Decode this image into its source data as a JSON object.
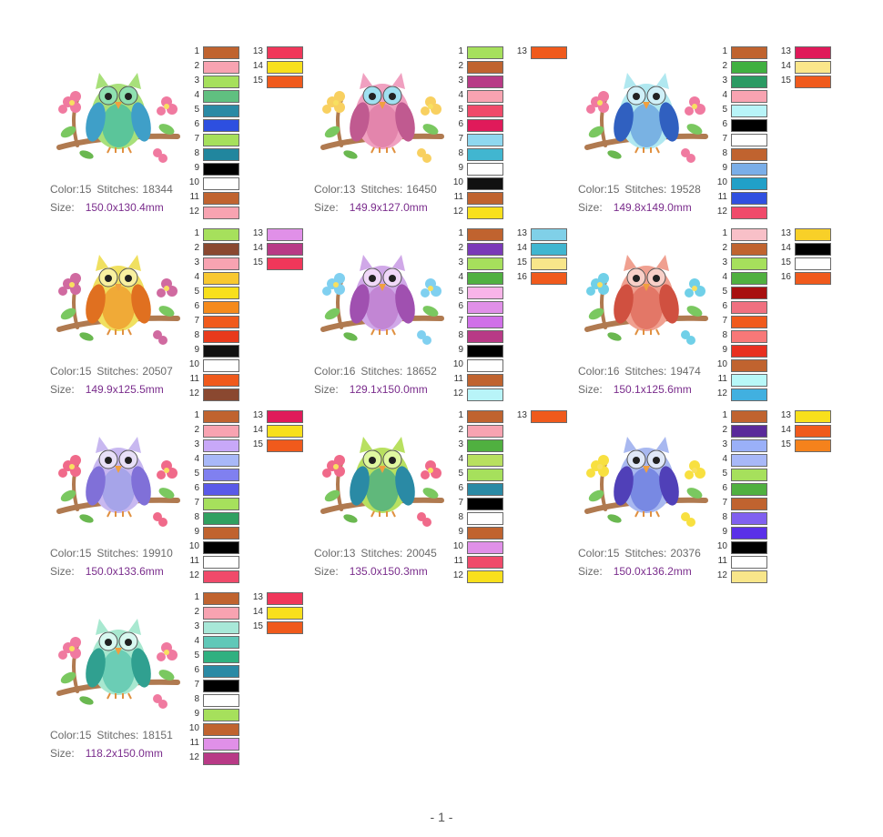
{
  "labels": {
    "color": "Color:",
    "stitches": "Stitches:",
    "size": "Size:"
  },
  "page_number": "- 1 -",
  "designs": [
    {
      "colors": "15",
      "stitches": "18344",
      "size": "150.0x130.4mm",
      "palette": [
        "#c0632f",
        "#f8a3b1",
        "#a6e05c",
        "#60c080",
        "#2a8aa5",
        "#2d4fe0",
        "#a6e05c",
        "#21869e",
        "#000000",
        "#ffffff",
        "#c0632f",
        "#f8a3b1",
        "#f0375a",
        "#f8e01c",
        "#f05a1c"
      ],
      "art": {
        "body": "#a8e07a",
        "belly": "#4ec0a0",
        "wing": "#3f9fc8",
        "flower": "#f07aa0",
        "eye": "#8fe0b0"
      }
    },
    {
      "colors": "13",
      "stitches": "16450",
      "size": "149.9x127.0mm",
      "palette": [
        "#a6e05c",
        "#c0632f",
        "#b83a86",
        "#f8a3b1",
        "#f04a6a",
        "#e01a5a",
        "#8fd8f0",
        "#41b6d0",
        "#ffffff",
        "#111111",
        "#c0632f",
        "#f8e01c",
        "#f05a1c"
      ],
      "art": {
        "body": "#f0a0c0",
        "belly": "#e080a8",
        "wing": "#c05a90",
        "flower": "#f8d060",
        "eye": "#a0e0f0"
      }
    },
    {
      "colors": "15",
      "stitches": "19528",
      "size": "149.8x149.0mm",
      "palette": [
        "#c0632f",
        "#40b040",
        "#2b9a63",
        "#f8a3b1",
        "#b8f4f8",
        "#000000",
        "#ffffff",
        "#c0632f",
        "#7aaee8",
        "#21a0c8",
        "#3050e0",
        "#f04a6a",
        "#e01a5a",
        "#fbe68a",
        "#f05a1c"
      ],
      "art": {
        "body": "#b0e8f0",
        "belly": "#70a8e0",
        "wing": "#3060c0",
        "flower": "#f07aa0",
        "eye": "#d0f0f8"
      }
    },
    {
      "colors": "15",
      "stitches": "20507",
      "size": "149.9x125.5mm",
      "palette": [
        "#a6e05c",
        "#8a4830",
        "#f8a3b1",
        "#f8c830",
        "#f8e01c",
        "#f58a1c",
        "#f05a1c",
        "#e83a1c",
        "#111111",
        "#ffffff",
        "#f05a1c",
        "#8a4830",
        "#e090e8",
        "#b83a86",
        "#f0375a"
      ],
      "art": {
        "body": "#f0e060",
        "belly": "#f0a030",
        "wing": "#e07020",
        "flower": "#d06aa0",
        "eye": "#f8f0a0"
      }
    },
    {
      "colors": "16",
      "stitches": "18652",
      "size": "129.1x150.0mm",
      "palette": [
        "#c0632f",
        "#7a3ab8",
        "#a6e05c",
        "#50b040",
        "#f8b4e8",
        "#e090e8",
        "#d070e8",
        "#b83a86",
        "#000000",
        "#ffffff",
        "#c0632f",
        "#b8f4f8",
        "#80d0e8",
        "#41b6d0",
        "#f8e68a",
        "#f05a1c"
      ],
      "art": {
        "body": "#d0a8e8",
        "belly": "#c080d0",
        "wing": "#a050b0",
        "flower": "#80d0f0",
        "eye": "#f0d8f8"
      }
    },
    {
      "colors": "16",
      "stitches": "19474",
      "size": "150.1x125.6mm",
      "palette": [
        "#f8c0c8",
        "#c0632f",
        "#a6e05c",
        "#50b040",
        "#a81010",
        "#f07080",
        "#f05a1c",
        "#f87878",
        "#e83020",
        "#c0632f",
        "#b8f8f8",
        "#41b0e0",
        "#f8d028",
        "#000000",
        "#ffffff",
        "#f05a1c"
      ],
      "art": {
        "body": "#f0a090",
        "belly": "#e07060",
        "wing": "#d05040",
        "flower": "#70d0e8",
        "eye": "#f8d0c8"
      }
    },
    {
      "colors": "15",
      "stitches": "19910",
      "size": "150.0x133.6mm",
      "palette": [
        "#c0632f",
        "#f8a3b1",
        "#c8a8f8",
        "#a8b8f8",
        "#8080f0",
        "#5a5ae8",
        "#a6e05c",
        "#30a060",
        "#c0632f",
        "#000000",
        "#ffffff",
        "#f04a6a",
        "#e01a5a",
        "#f8e01c",
        "#f05a1c"
      ],
      "art": {
        "body": "#c8b8f0",
        "belly": "#a0a0e8",
        "wing": "#8070d8",
        "flower": "#f06a8a",
        "eye": "#e8e0f8"
      }
    },
    {
      "colors": "13",
      "stitches": "20045",
      "size": "135.0x150.3mm",
      "palette": [
        "#c0632f",
        "#f8a3b1",
        "#50b040",
        "#b8e060",
        "#a6e05c",
        "#2a8aa5",
        "#000000",
        "#ffffff",
        "#c0632f",
        "#e090e8",
        "#f04a6a",
        "#f8e01c",
        "#f05a1c"
      ],
      "art": {
        "body": "#b8e060",
        "belly": "#50b080",
        "wing": "#2a8aa5",
        "flower": "#f06a8a",
        "eye": "#e0f8a0"
      }
    },
    {
      "colors": "15",
      "stitches": "20376",
      "size": "150.0x136.2mm",
      "palette": [
        "#c0632f",
        "#5a2a9a",
        "#9ab0f8",
        "#a8b8f8",
        "#a6e05c",
        "#50b040",
        "#c0632f",
        "#8060f0",
        "#5a30e8",
        "#000000",
        "#ffffff",
        "#f8e68a",
        "#f8e01c",
        "#f05a1c",
        "#f5821c"
      ],
      "art": {
        "body": "#a8b8f0",
        "belly": "#7080e0",
        "wing": "#5040b8",
        "flower": "#f8e040",
        "eye": "#e0e8f8"
      }
    },
    {
      "colors": "15",
      "stitches": "18151",
      "size": "118.2x150.0mm",
      "palette": [
        "#c0632f",
        "#f8a3b1",
        "#a8e8d8",
        "#60c8b8",
        "#30b080",
        "#2a8aa5",
        "#000000",
        "#ffffff",
        "#a6e05c",
        "#c0632f",
        "#e090e8",
        "#b83a86",
        "#f0375a",
        "#f8e01c",
        "#f05a1c"
      ],
      "art": {
        "body": "#a8e8d0",
        "belly": "#60c8b0",
        "wing": "#30a090",
        "flower": "#f07aa0",
        "eye": "#d8f8f0"
      }
    }
  ]
}
